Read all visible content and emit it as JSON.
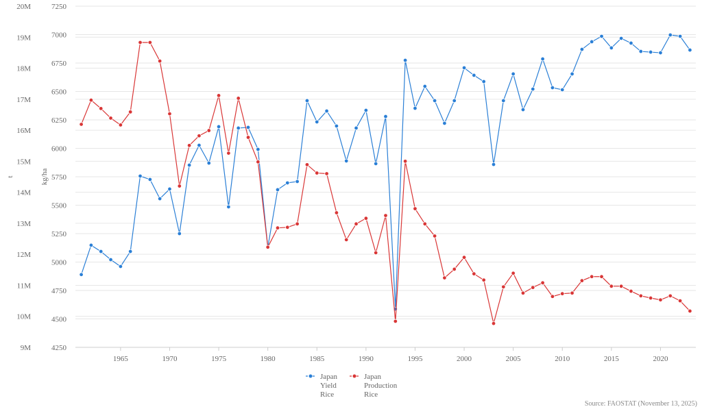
{
  "chart_data": {
    "type": "line",
    "x": [
      1961,
      1962,
      1963,
      1964,
      1965,
      1966,
      1967,
      1968,
      1969,
      1970,
      1971,
      1972,
      1973,
      1974,
      1975,
      1976,
      1977,
      1978,
      1979,
      1980,
      1981,
      1982,
      1983,
      1984,
      1985,
      1986,
      1987,
      1988,
      1989,
      1990,
      1991,
      1992,
      1993,
      1994,
      1995,
      1996,
      1997,
      1998,
      1999,
      2000,
      2001,
      2002,
      2003,
      2004,
      2005,
      2006,
      2007,
      2008,
      2009,
      2010,
      2011,
      2012,
      2013,
      2014,
      2015,
      2016,
      2017,
      2018,
      2019,
      2020,
      2021,
      2022,
      2023
    ],
    "x_ticks": [
      "1965",
      "1970",
      "1975",
      "1980",
      "1985",
      "1990",
      "1995",
      "2000",
      "2005",
      "2010",
      "2015",
      "2020"
    ],
    "x_range": [
      1960.4,
      2023.6
    ],
    "left_axis": {
      "label": "t",
      "range": [
        9000000,
        20000000
      ],
      "ticks": [
        "9M",
        "10M",
        "11M",
        "12M",
        "13M",
        "14M",
        "15M",
        "16M",
        "17M",
        "18M",
        "19M",
        "20M"
      ]
    },
    "right_axis": {
      "label": "kg/ha",
      "range": [
        4250,
        7250
      ],
      "ticks": [
        "4250",
        "4500",
        "4750",
        "5000",
        "5250",
        "5500",
        "5750",
        "6000",
        "6250",
        "6500",
        "6750",
        "7000",
        "7250"
      ]
    },
    "grid": true,
    "legend_position": "bottom",
    "series": [
      {
        "name": [
          "Japan",
          "Yield",
          "Rice"
        ],
        "axis": "kg/ha",
        "color": "#2a7fd6",
        "values": [
          4890,
          5148,
          5093,
          5021,
          4961,
          5093,
          5756,
          5726,
          5557,
          5642,
          5250,
          5852,
          6027,
          5870,
          6190,
          5485,
          6178,
          6184,
          5991,
          5130,
          5636,
          5696,
          5708,
          6419,
          6232,
          6328,
          6196,
          5889,
          6178,
          6334,
          5865,
          6280,
          4587,
          6774,
          6352,
          6545,
          6419,
          6220,
          6419,
          6708,
          6642,
          6587,
          5858,
          6419,
          6654,
          6340,
          6521,
          6786,
          6533,
          6515,
          6654,
          6870,
          6937,
          6985,
          6883,
          6967,
          6925,
          6852,
          6846,
          6840,
          6997,
          6985,
          6864
        ]
      },
      {
        "name": [
          "Japan",
          "Production",
          "Rice"
        ],
        "axis": "t",
        "color": "#d93636",
        "values": [
          16190000,
          16970000,
          16700000,
          16390000,
          16170000,
          16590000,
          18830000,
          18830000,
          18230000,
          16530000,
          14200000,
          15510000,
          15820000,
          15990000,
          17120000,
          15260000,
          17030000,
          15770000,
          14980000,
          12230000,
          12850000,
          12870000,
          12980000,
          14890000,
          14620000,
          14600000,
          13340000,
          12470000,
          12980000,
          13160000,
          12050000,
          13250000,
          9840000,
          15000000,
          13470000,
          12980000,
          12590000,
          11240000,
          11520000,
          11900000,
          11370000,
          11170000,
          9770000,
          10950000,
          11390000,
          10750000,
          10930000,
          11080000,
          10640000,
          10730000,
          10750000,
          11150000,
          11280000,
          11280000,
          10970000,
          10970000,
          10810000,
          10660000,
          10590000,
          10530000,
          10660000,
          10500000,
          10170000
        ]
      }
    ],
    "source": "Source: FAOSTAT (November 13, 2025)"
  }
}
